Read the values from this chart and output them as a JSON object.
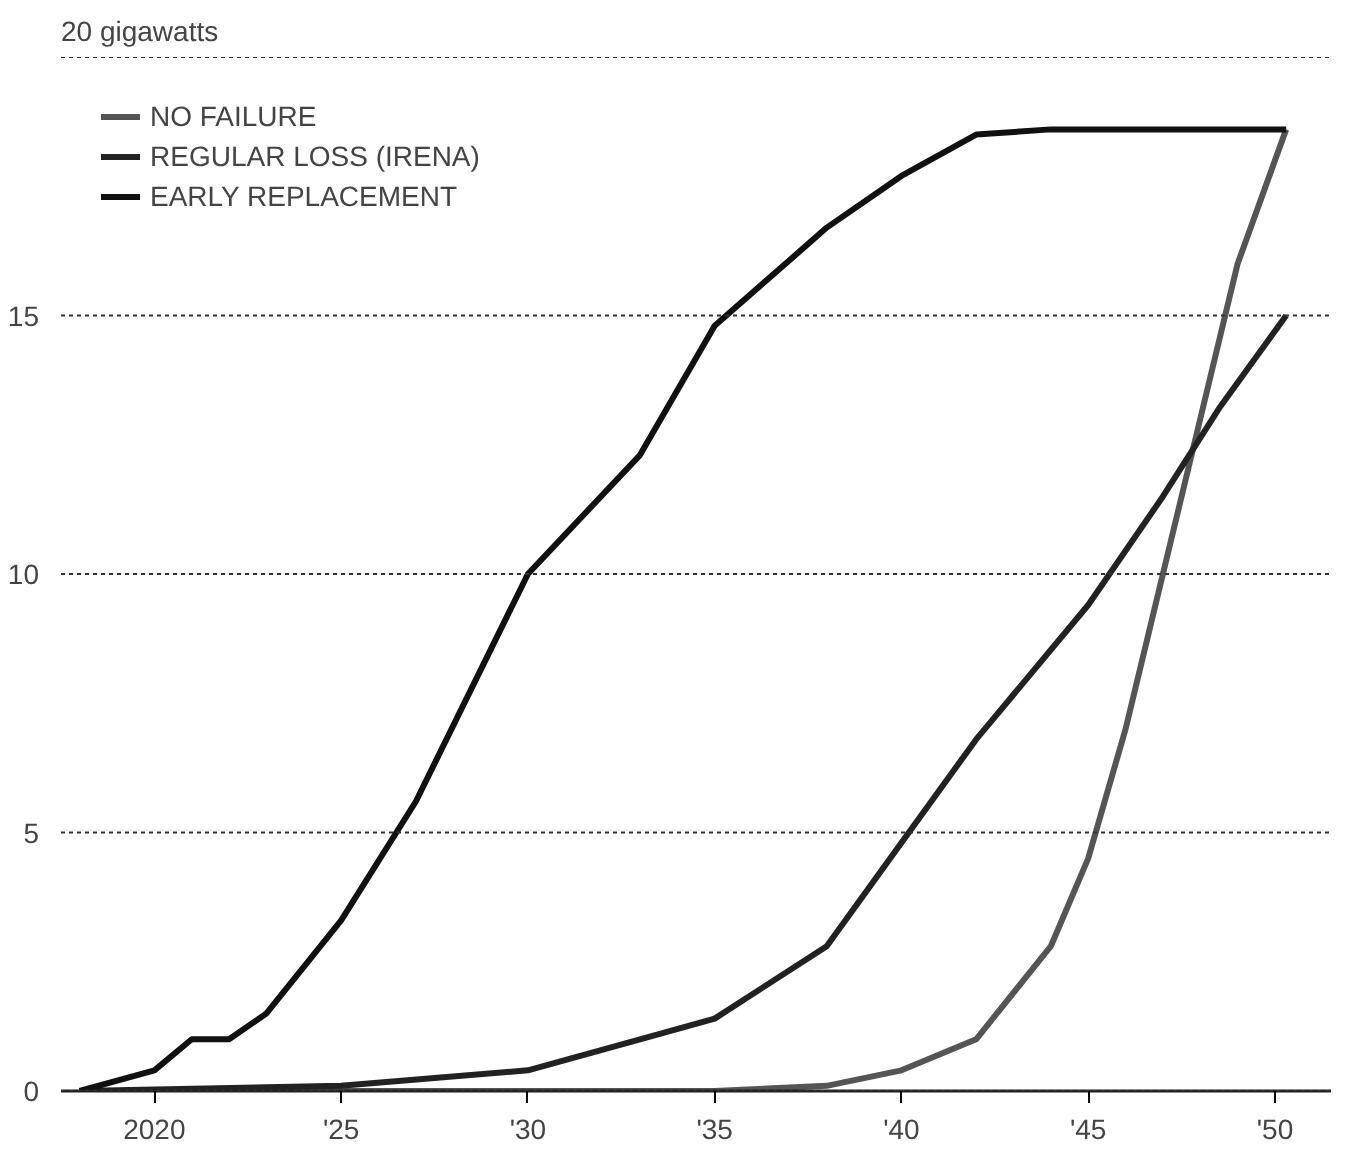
{
  "chart_data": {
    "type": "line",
    "ylabel": "20 gigawatts",
    "xlim": [
      2017.5,
      2051.5
    ],
    "ylim": [
      0,
      20
    ],
    "xticks": [
      {
        "value": 2020,
        "label": "2020"
      },
      {
        "value": 2025,
        "label": "'25"
      },
      {
        "value": 2030,
        "label": "'30"
      },
      {
        "value": 2035,
        "label": "'35"
      },
      {
        "value": 2040,
        "label": "'40"
      },
      {
        "value": 2045,
        "label": "'45"
      },
      {
        "value": 2050,
        "label": "'50"
      }
    ],
    "yticks": [
      0,
      5,
      10,
      15,
      {
        "value": 20,
        "label": null
      }
    ],
    "grid": "y",
    "legend": "top left",
    "line_style": "solid",
    "marker": "none",
    "series": [
      {
        "name": "NO FAILURE",
        "color": "#555555",
        "x": [
          2018,
          2030,
          2035,
          2038,
          2040,
          2042,
          2044,
          2045,
          2046,
          2047,
          2048,
          2049,
          2050.3
        ],
        "values": [
          0,
          0,
          0,
          0.1,
          0.4,
          1.0,
          2.8,
          4.5,
          7,
          10,
          13,
          16,
          18.6
        ]
      },
      {
        "name": "REGULAR LOSS (IRENA)",
        "color": "#222222",
        "x": [
          2018,
          2025,
          2030,
          2033,
          2035,
          2038,
          2040,
          2042,
          2045,
          2047,
          2048.5,
          2050.3
        ],
        "values": [
          0,
          0.1,
          0.4,
          1.0,
          1.4,
          2.8,
          4.8,
          6.8,
          9.4,
          11.5,
          13.2,
          15
        ]
      },
      {
        "name": "EARLY REPLACEMENT",
        "color": "#111111",
        "x": [
          2018,
          2020,
          2021,
          2022,
          2023,
          2025,
          2027,
          2030,
          2033,
          2035,
          2038,
          2040,
          2042,
          2044,
          2050.3
        ],
        "values": [
          0,
          0.4,
          1.0,
          1.0,
          1.5,
          3.3,
          5.6,
          10.0,
          12.3,
          14.8,
          16.7,
          17.7,
          18.5,
          18.6,
          18.6
        ]
      }
    ]
  }
}
